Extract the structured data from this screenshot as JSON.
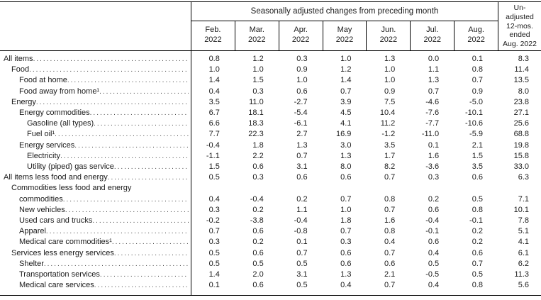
{
  "table": {
    "header": {
      "span_title": "Seasonally adjusted changes from preceding month",
      "months": [
        {
          "abbr": "Feb.",
          "year": "2022"
        },
        {
          "abbr": "Mar.",
          "year": "2022"
        },
        {
          "abbr": "Apr.",
          "year": "2022"
        },
        {
          "abbr": "May",
          "year": "2022"
        },
        {
          "abbr": "Jun.",
          "year": "2022"
        },
        {
          "abbr": "Jul.",
          "year": "2022"
        },
        {
          "abbr": "Aug.",
          "year": "2022"
        }
      ],
      "unadjusted_lines": [
        "Un-",
        "adjusted",
        "12-mos.",
        "ended",
        "Aug. 2022"
      ]
    },
    "rows": [
      {
        "label": "All items",
        "indent": 0,
        "values": [
          "0.8",
          "1.2",
          "0.3",
          "1.0",
          "1.3",
          "0.0",
          "0.1",
          "8.3"
        ]
      },
      {
        "label": "Food",
        "indent": 1,
        "values": [
          "1.0",
          "1.0",
          "0.9",
          "1.2",
          "1.0",
          "1.1",
          "0.8",
          "11.4"
        ]
      },
      {
        "label": "Food at home",
        "indent": 2,
        "values": [
          "1.4",
          "1.5",
          "1.0",
          "1.4",
          "1.0",
          "1.3",
          "0.7",
          "13.5"
        ]
      },
      {
        "label": "Food away from home¹",
        "indent": 2,
        "values": [
          "0.4",
          "0.3",
          "0.6",
          "0.7",
          "0.9",
          "0.7",
          "0.9",
          "8.0"
        ]
      },
      {
        "label": "Energy",
        "indent": 1,
        "values": [
          "3.5",
          "11.0",
          "-2.7",
          "3.9",
          "7.5",
          "-4.6",
          "-5.0",
          "23.8"
        ]
      },
      {
        "label": "Energy commodities",
        "indent": 2,
        "values": [
          "6.7",
          "18.1",
          "-5.4",
          "4.5",
          "10.4",
          "-7.6",
          "-10.1",
          "27.1"
        ]
      },
      {
        "label": "Gasoline (all types)",
        "indent": 3,
        "values": [
          "6.6",
          "18.3",
          "-6.1",
          "4.1",
          "11.2",
          "-7.7",
          "-10.6",
          "25.6"
        ]
      },
      {
        "label": "Fuel oil¹",
        "indent": 3,
        "values": [
          "7.7",
          "22.3",
          "2.7",
          "16.9",
          "-1.2",
          "-11.0",
          "-5.9",
          "68.8"
        ]
      },
      {
        "label": "Energy services",
        "indent": 2,
        "values": [
          "-0.4",
          "1.8",
          "1.3",
          "3.0",
          "3.5",
          "0.1",
          "2.1",
          "19.8"
        ]
      },
      {
        "label": "Electricity",
        "indent": 3,
        "values": [
          "-1.1",
          "2.2",
          "0.7",
          "1.3",
          "1.7",
          "1.6",
          "1.5",
          "15.8"
        ]
      },
      {
        "label": "Utility (piped) gas service",
        "indent": 3,
        "values": [
          "1.5",
          "0.6",
          "3.1",
          "8.0",
          "8.2",
          "-3.6",
          "3.5",
          "33.0"
        ]
      },
      {
        "label": "All items less food and energy",
        "indent": 0,
        "values": [
          "0.5",
          "0.3",
          "0.6",
          "0.6",
          "0.7",
          "0.3",
          "0.6",
          "6.3"
        ]
      },
      {
        "label": "Commodities less food and energy commodities",
        "label_lines": [
          "Commodities less food and energy",
          "commodities"
        ],
        "indent": 1,
        "values": [
          "0.4",
          "-0.4",
          "0.2",
          "0.7",
          "0.8",
          "0.2",
          "0.5",
          "7.1"
        ]
      },
      {
        "label": "New vehicles",
        "indent": 2,
        "values": [
          "0.3",
          "0.2",
          "1.1",
          "1.0",
          "0.7",
          "0.6",
          "0.8",
          "10.1"
        ]
      },
      {
        "label": "Used cars and trucks",
        "indent": 2,
        "values": [
          "-0.2",
          "-3.8",
          "-0.4",
          "1.8",
          "1.6",
          "-0.4",
          "-0.1",
          "7.8"
        ]
      },
      {
        "label": "Apparel",
        "indent": 2,
        "values": [
          "0.7",
          "0.6",
          "-0.8",
          "0.7",
          "0.8",
          "-0.1",
          "0.2",
          "5.1"
        ]
      },
      {
        "label": "Medical care commodities¹",
        "indent": 2,
        "values": [
          "0.3",
          "0.2",
          "0.1",
          "0.3",
          "0.4",
          "0.6",
          "0.2",
          "4.1"
        ]
      },
      {
        "label": "Services less energy services",
        "indent": 1,
        "values": [
          "0.5",
          "0.6",
          "0.7",
          "0.6",
          "0.7",
          "0.4",
          "0.6",
          "6.1"
        ]
      },
      {
        "label": "Shelter",
        "indent": 2,
        "values": [
          "0.5",
          "0.5",
          "0.5",
          "0.6",
          "0.6",
          "0.5",
          "0.7",
          "6.2"
        ]
      },
      {
        "label": "Transportation services",
        "indent": 2,
        "values": [
          "1.4",
          "2.0",
          "3.1",
          "1.3",
          "2.1",
          "-0.5",
          "0.5",
          "11.3"
        ]
      },
      {
        "label": "Medical care services",
        "indent": 2,
        "values": [
          "0.1",
          "0.6",
          "0.5",
          "0.4",
          "0.7",
          "0.4",
          "0.8",
          "5.6"
        ]
      }
    ]
  }
}
